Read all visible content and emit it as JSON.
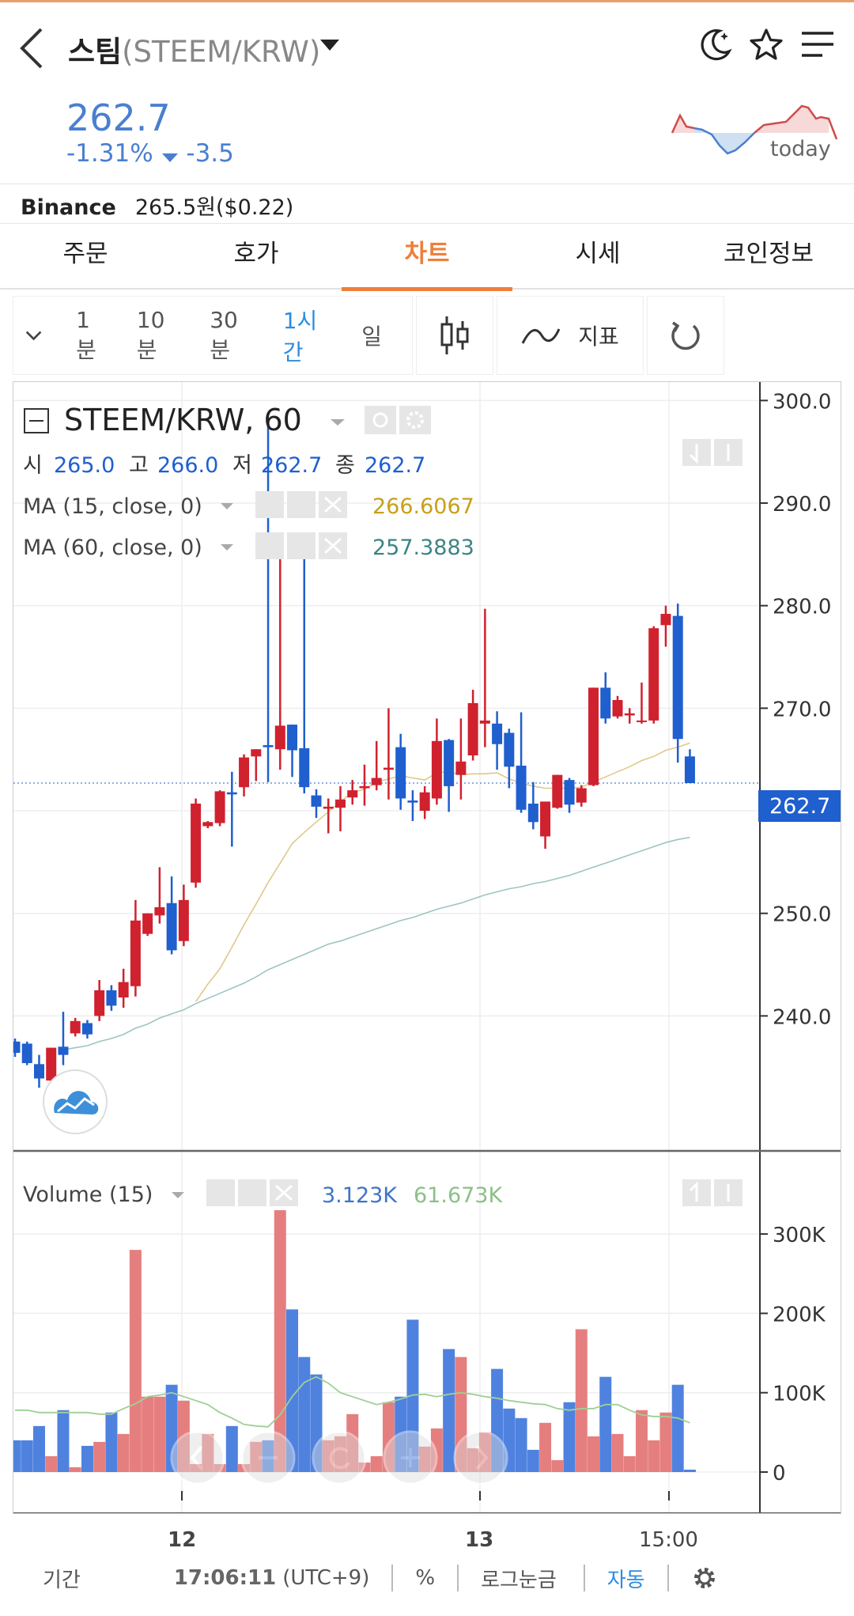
{
  "header": {
    "coin_name": "스팀",
    "pair": "(STEEM/KRW)",
    "price": "262.7",
    "change_pct": "-1.31%",
    "change_abs": "-3.5",
    "sparkline_label": "today"
  },
  "exchange": {
    "name": "Binance",
    "price": "265.5원($0.22)"
  },
  "tabs": [
    "주문",
    "호가",
    "차트",
    "시세",
    "코인정보"
  ],
  "active_tab": 2,
  "toolbar": {
    "timeframes": [
      "1분",
      "10분",
      "30분",
      "1시간",
      "일"
    ],
    "active_timeframe": 3,
    "indicator_label": "지표"
  },
  "legend": {
    "symbol": "STEEM/KRW, 60",
    "ohlc_open_label": "시",
    "ohlc_open": "265.0",
    "ohlc_high_label": "고",
    "ohlc_high": "266.0",
    "ohlc_low_label": "저",
    "ohlc_low": "262.7",
    "ohlc_close_label": "종",
    "ohlc_close": "262.7",
    "ma15_label": "MA (15, close, 0)",
    "ma15_value": "266.6067",
    "ma60_label": "MA (60, close, 0)",
    "ma60_value": "257.3883",
    "volume_label": "Volume (15)",
    "volume_value": "3.123K",
    "volume_ma": "61.673K",
    "last_price_tag": "262.7"
  },
  "colors": {
    "up": "#d0212e",
    "down": "#1f5fce",
    "ma15": "#e0c88a",
    "ma60": "#9ec4c2",
    "accent": "#ee7f3a",
    "price_blue": "#4a7fd0",
    "vol_up": "#e57f7f",
    "vol_down": "#4f82df",
    "vol_ma": "#9fcf98"
  },
  "chart_data": {
    "type": "candlestick",
    "y_axis_ticks": [
      "300.0",
      "290.0",
      "280.0",
      "270.0",
      "260.0",
      "250.0",
      "240.0"
    ],
    "ylim": [
      229,
      301.8
    ],
    "volume_axis_ticks": [
      "300K",
      "200K",
      "100K",
      "0"
    ],
    "volume_ylim": [
      0,
      330
    ],
    "x_tick_labels": [
      "12",
      "13",
      "15:00"
    ],
    "candles": [
      {
        "o": 237.5,
        "h": 237.8,
        "c": 236.4,
        "l": 236.0
      },
      {
        "o": 237.3,
        "h": 237.5,
        "c": 235.4,
        "l": 235.2
      },
      {
        "o": 235.3,
        "h": 236.2,
        "c": 233.9,
        "l": 233.0
      },
      {
        "o": 233.7,
        "h": 236.8,
        "c": 236.9,
        "l": 233.5
      },
      {
        "o": 237.0,
        "h": 240.4,
        "c": 236.2,
        "l": 235.2
      },
      {
        "o": 238.3,
        "h": 239.8,
        "c": 239.5,
        "l": 238.0
      },
      {
        "o": 239.3,
        "h": 239.6,
        "c": 238.2,
        "l": 237.8
      },
      {
        "o": 240.0,
        "h": 243.5,
        "c": 242.5,
        "l": 239.5
      },
      {
        "o": 242.5,
        "h": 243.0,
        "c": 241.0,
        "l": 240.5
      },
      {
        "o": 241.8,
        "h": 244.6,
        "c": 243.3,
        "l": 240.8
      },
      {
        "o": 242.9,
        "h": 251.3,
        "c": 249.3,
        "l": 241.9
      },
      {
        "o": 248.0,
        "h": 250.0,
        "c": 250.0,
        "l": 247.8
      },
      {
        "o": 249.8,
        "h": 254.5,
        "c": 250.6,
        "l": 249.0
      },
      {
        "o": 251.0,
        "h": 253.6,
        "c": 246.4,
        "l": 246.0
      },
      {
        "o": 247.3,
        "h": 252.8,
        "c": 251.3,
        "l": 246.8
      },
      {
        "o": 253.0,
        "h": 261.2,
        "c": 260.7,
        "l": 252.5
      },
      {
        "o": 258.5,
        "h": 259.0,
        "c": 258.9,
        "l": 258.3
      },
      {
        "o": 258.8,
        "h": 262.0,
        "c": 261.9,
        "l": 258.5
      },
      {
        "o": 261.8,
        "h": 263.8,
        "c": 261.6,
        "l": 256.5
      },
      {
        "o": 262.3,
        "h": 265.5,
        "c": 265.2,
        "l": 261.4
      },
      {
        "o": 265.3,
        "h": 266.0,
        "c": 266.0,
        "l": 262.9
      },
      {
        "o": 266.4,
        "h": 298.0,
        "c": 266.2,
        "l": 262.8
      },
      {
        "o": 266.0,
        "h": 286.5,
        "c": 268.3,
        "l": 264.0
      },
      {
        "o": 268.4,
        "h": 268.4,
        "c": 265.9,
        "l": 263.3
      },
      {
        "o": 266.1,
        "h": 285.7,
        "c": 262.3,
        "l": 261.7
      },
      {
        "o": 261.5,
        "h": 262.1,
        "c": 260.4,
        "l": 259.3
      },
      {
        "o": 260.2,
        "h": 261.2,
        "c": 260.4,
        "l": 257.8
      },
      {
        "o": 260.3,
        "h": 262.4,
        "c": 261.1,
        "l": 258.0
      },
      {
        "o": 261.3,
        "h": 263.0,
        "c": 262.0,
        "l": 260.6
      },
      {
        "o": 262.2,
        "h": 264.5,
        "c": 262.4,
        "l": 260.5
      },
      {
        "o": 262.5,
        "h": 266.8,
        "c": 263.2,
        "l": 262.0
      },
      {
        "o": 264.0,
        "h": 270.0,
        "c": 264.2,
        "l": 261.1
      },
      {
        "o": 266.2,
        "h": 267.5,
        "c": 261.2,
        "l": 260.1
      },
      {
        "o": 261.0,
        "h": 262.0,
        "c": 260.8,
        "l": 259.0
      },
      {
        "o": 260.0,
        "h": 262.4,
        "c": 261.8,
        "l": 259.2
      },
      {
        "o": 261.2,
        "h": 269.0,
        "c": 266.8,
        "l": 260.6
      },
      {
        "o": 266.9,
        "h": 267.0,
        "c": 262.4,
        "l": 259.9
      },
      {
        "o": 263.5,
        "h": 269.0,
        "c": 264.8,
        "l": 261.1
      },
      {
        "o": 265.4,
        "h": 271.8,
        "c": 270.5,
        "l": 264.9
      },
      {
        "o": 268.5,
        "h": 279.7,
        "c": 268.8,
        "l": 266.2
      },
      {
        "o": 268.5,
        "h": 269.7,
        "c": 266.5,
        "l": 264.0
      },
      {
        "o": 267.6,
        "h": 268.0,
        "c": 264.3,
        "l": 262.2
      },
      {
        "o": 264.4,
        "h": 269.6,
        "c": 260.1,
        "l": 259.8
      },
      {
        "o": 260.7,
        "h": 262.8,
        "c": 258.9,
        "l": 258.2
      },
      {
        "o": 257.5,
        "h": 260.8,
        "c": 260.9,
        "l": 256.3
      },
      {
        "o": 260.3,
        "h": 263.5,
        "c": 263.5,
        "l": 260.2
      },
      {
        "o": 263.0,
        "h": 263.2,
        "c": 260.6,
        "l": 259.8
      },
      {
        "o": 260.8,
        "h": 262.5,
        "c": 262.2,
        "l": 260.4
      },
      {
        "o": 262.5,
        "h": 272.0,
        "c": 272.0,
        "l": 262.4
      },
      {
        "o": 272.0,
        "h": 273.5,
        "c": 269.0,
        "l": 268.5
      },
      {
        "o": 269.2,
        "h": 271.2,
        "c": 270.8,
        "l": 269.0
      },
      {
        "o": 269.3,
        "h": 270.0,
        "c": 269.5,
        "l": 268.5
      },
      {
        "o": 268.8,
        "h": 272.5,
        "c": 268.8,
        "l": 268.5
      },
      {
        "o": 268.8,
        "h": 278.0,
        "c": 277.8,
        "l": 268.5
      },
      {
        "o": 278.1,
        "h": 280.0,
        "c": 279.2,
        "l": 276.0
      },
      {
        "o": 279.0,
        "h": 280.2,
        "c": 267.0,
        "l": 264.7
      },
      {
        "o": 265.3,
        "h": 266.0,
        "c": 262.7,
        "l": 262.7
      }
    ],
    "ma15": [
      null,
      null,
      null,
      null,
      null,
      null,
      null,
      null,
      null,
      null,
      null,
      null,
      null,
      null,
      null,
      241.4,
      243.1,
      244.6,
      246.7,
      248.9,
      250.9,
      253.0,
      254.9,
      256.8,
      257.9,
      258.9,
      259.9,
      260.9,
      261.8,
      262.1,
      262.8,
      263.1,
      263.4,
      263.2,
      263.0,
      263.7,
      263.8,
      263.5,
      263.6,
      263.6,
      263.7,
      263.1,
      262.7,
      262.4,
      262.2,
      262.2,
      262.2,
      262.3,
      262.8,
      263.3,
      263.8,
      264.3,
      264.9,
      265.3,
      265.9,
      266.2,
      266.6
    ],
    "ma60": [
      null,
      null,
      null,
      null,
      236.7,
      236.9,
      237.1,
      237.5,
      237.8,
      238.2,
      238.8,
      239.2,
      239.8,
      240.2,
      240.6,
      241.2,
      241.7,
      242.2,
      242.7,
      243.2,
      243.8,
      244.5,
      245.0,
      245.5,
      246.0,
      246.5,
      247.0,
      247.3,
      247.7,
      248.1,
      248.5,
      248.9,
      249.3,
      249.6,
      250.0,
      250.4,
      250.7,
      251.0,
      251.4,
      251.8,
      252.1,
      252.4,
      252.6,
      252.9,
      253.1,
      253.4,
      253.7,
      254.1,
      254.5,
      254.9,
      255.3,
      255.7,
      256.1,
      256.5,
      256.9,
      257.2,
      257.4
    ],
    "volumes": [
      40,
      40,
      58,
      20,
      78,
      6,
      33,
      38,
      75,
      48,
      280,
      95,
      95,
      110,
      90,
      10,
      48,
      10,
      58,
      10,
      38,
      40,
      330,
      205,
      145,
      123,
      40,
      45,
      73,
      12,
      20,
      88,
      95,
      192,
      32,
      55,
      155,
      145,
      30,
      50,
      130,
      80,
      68,
      28,
      62,
      15,
      88,
      180,
      45,
      120,
      48,
      20,
      78,
      40,
      75,
      110,
      3
    ],
    "volume_ma": [
      78,
      78,
      75,
      75,
      75,
      75,
      75,
      73,
      73,
      80,
      86,
      95,
      97,
      100,
      95,
      90,
      85,
      75,
      68,
      60,
      58,
      57,
      72,
      95,
      113,
      120,
      112,
      100,
      95,
      90,
      85,
      88,
      92,
      97,
      98,
      95,
      98,
      100,
      98,
      95,
      93,
      90,
      88,
      86,
      85,
      80,
      78,
      80,
      80,
      85,
      85,
      78,
      72,
      70,
      70,
      68,
      62
    ]
  },
  "bottom_bar": {
    "range_label": "기간",
    "clock": "17:06:11",
    "timezone": "(UTC+9)",
    "pct_label": "%",
    "log_label": "로그눈금",
    "auto_label": "자동"
  }
}
